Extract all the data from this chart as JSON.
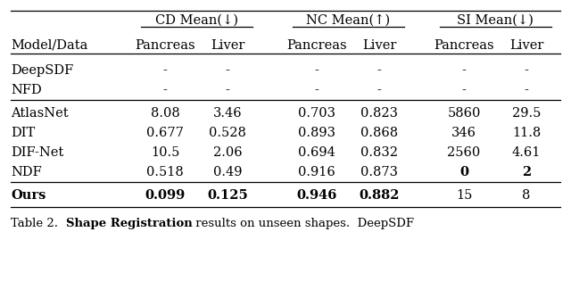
{
  "headers_top": [
    "CD Mean(↓)",
    "NC Mean(↑)",
    "SI Mean(↓)"
  ],
  "headers_sub": [
    "Model/Data",
    "Pancreas",
    "Liver",
    "Pancreas",
    "Liver",
    "Pancreas",
    "Liver"
  ],
  "rows": [
    {
      "model": "DeepSDF",
      "values": [
        "-",
        "-",
        "-",
        "-",
        "-",
        "-"
      ],
      "bold": [],
      "bold_model": false
    },
    {
      "model": "NFD",
      "values": [
        "-",
        "-",
        "-",
        "-",
        "-",
        "-"
      ],
      "bold": [],
      "bold_model": false
    },
    {
      "model": "AtlasNet",
      "values": [
        "8.08",
        "3.46",
        "0.703",
        "0.823",
        "5860",
        "29.5"
      ],
      "bold": [],
      "bold_model": false
    },
    {
      "model": "DIT",
      "values": [
        "0.677",
        "0.528",
        "0.893",
        "0.868",
        "346",
        "11.8"
      ],
      "bold": [],
      "bold_model": false
    },
    {
      "model": "DIF-Net",
      "values": [
        "10.5",
        "2.06",
        "0.694",
        "0.832",
        "2560",
        "4.61"
      ],
      "bold": [],
      "bold_model": false
    },
    {
      "model": "NDF",
      "values": [
        "0.518",
        "0.49",
        "0.916",
        "0.873",
        "0",
        "2"
      ],
      "bold": [
        4,
        5
      ],
      "bold_model": false
    },
    {
      "model": "Ours",
      "values": [
        "0.099",
        "0.125",
        "0.946",
        "0.882",
        "15",
        "8"
      ],
      "bold": [
        0,
        1,
        2,
        3
      ],
      "bold_model": true
    }
  ],
  "group_separators_after_row_idx": [
    1,
    5
  ],
  "caption_prefix": "Table 2.  ",
  "caption_bold": "Shape Registration",
  "caption_suffix": " results on unseen shapes.  DeepSDF",
  "bg_color": "#ffffff",
  "text_color": "#000000"
}
